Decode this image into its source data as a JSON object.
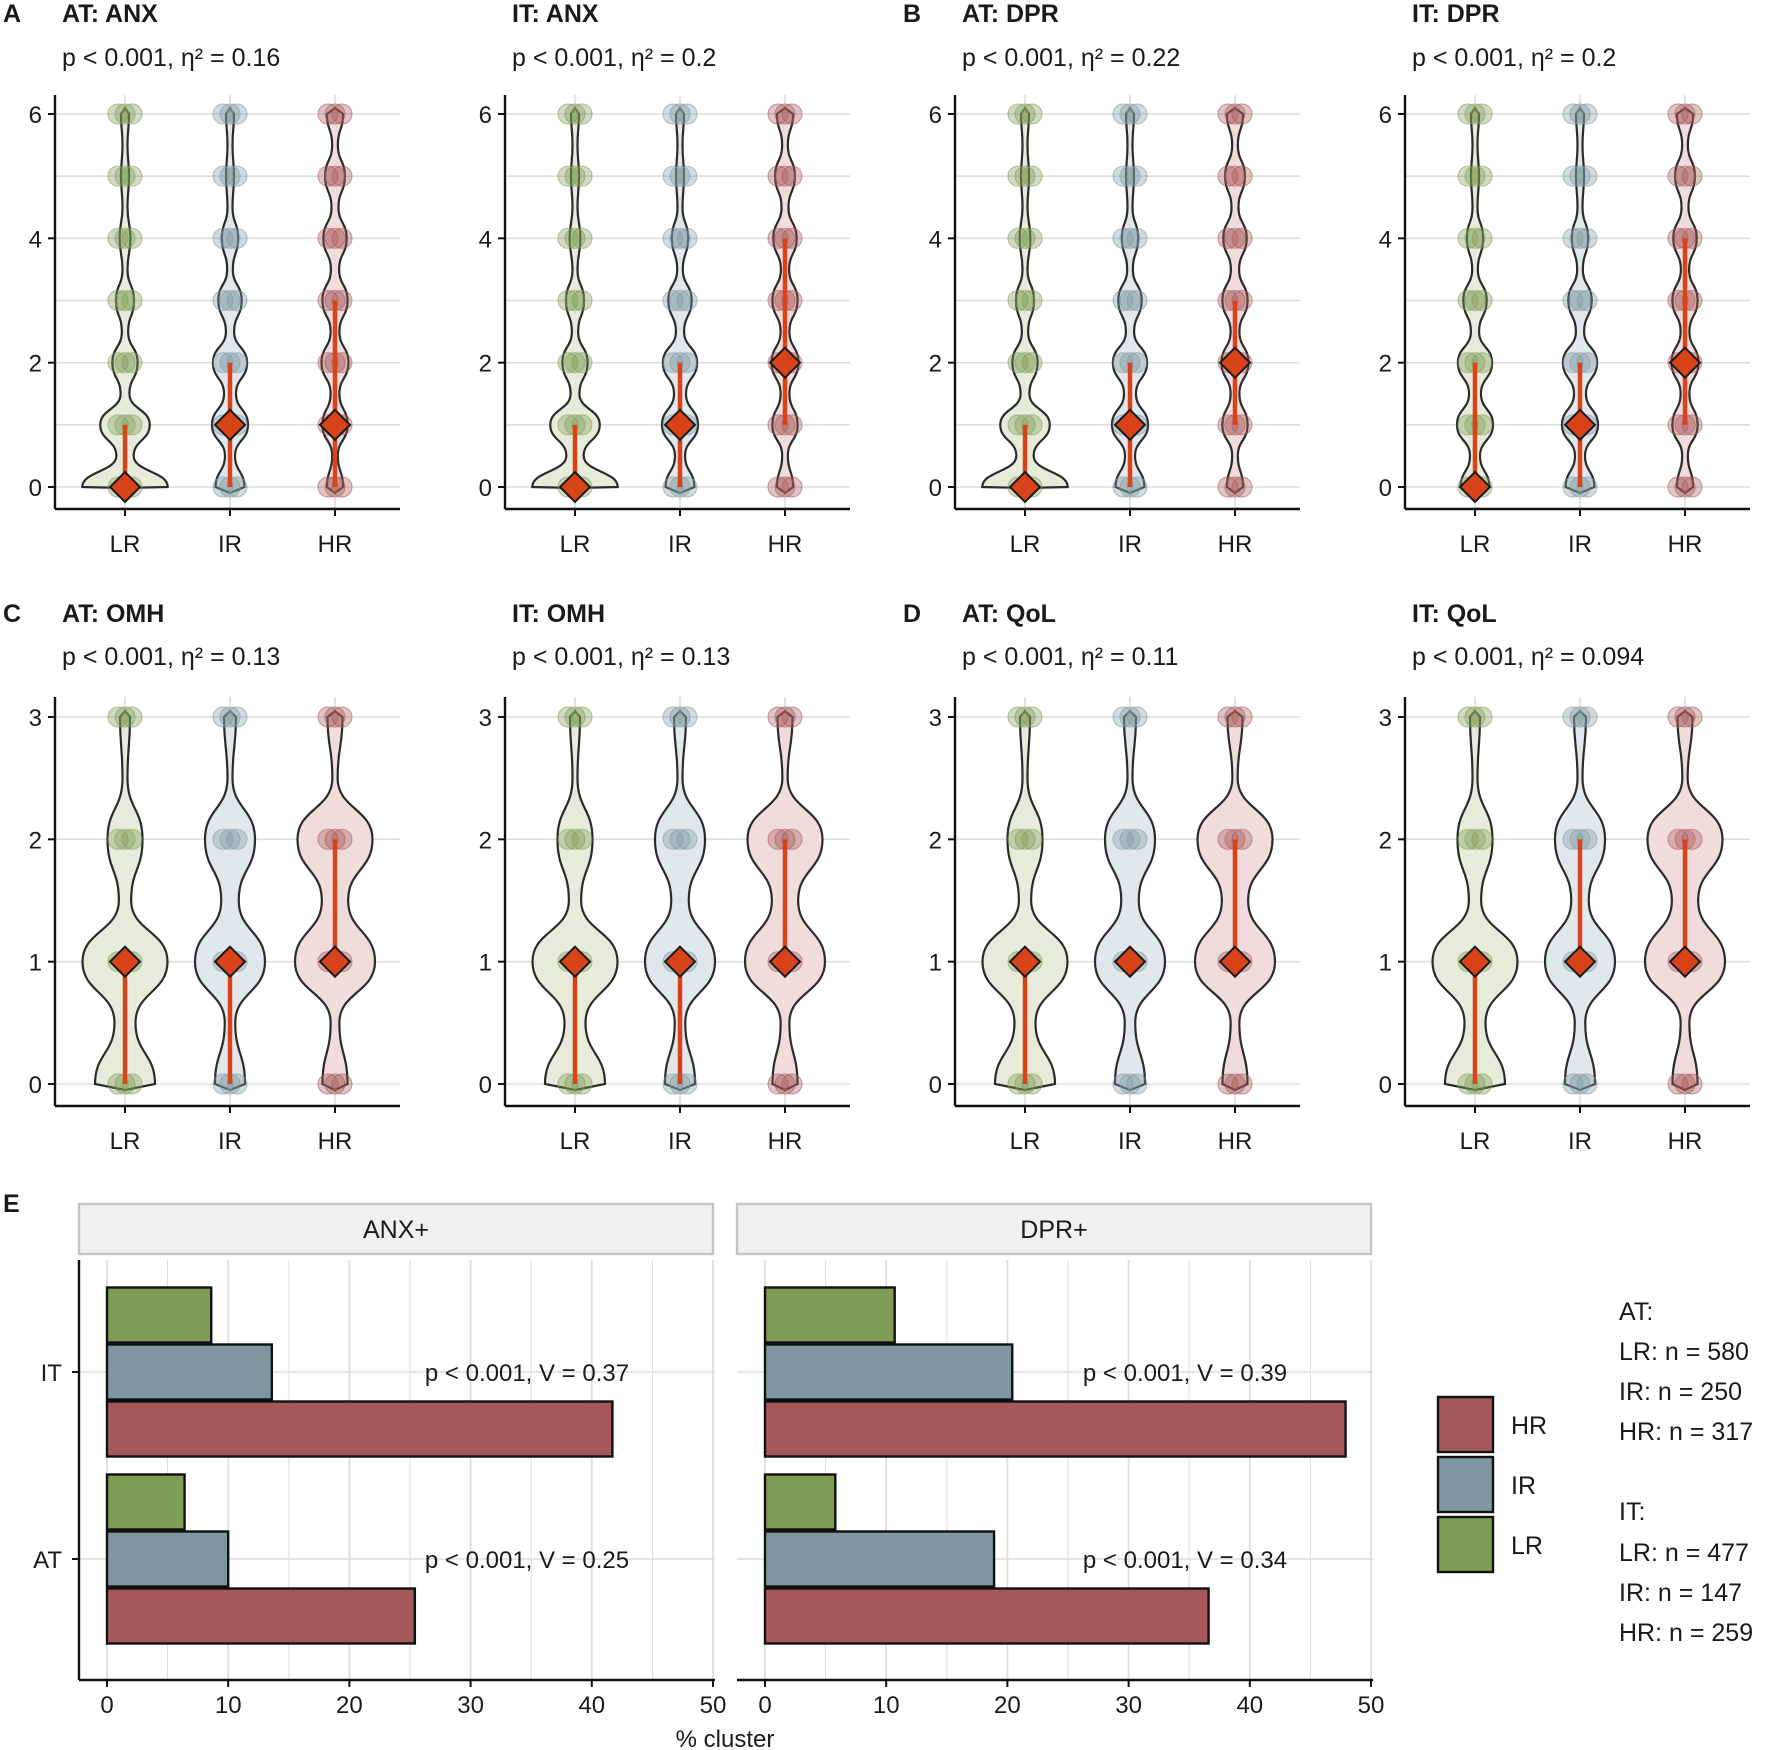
{
  "colors": {
    "LR": "#7f9c55",
    "IR": "#7e97a0",
    "HR": "#a5585a",
    "LR_violin": "#e6ecd9",
    "IR_violin": "#e1e8ec",
    "HR_violin": "#f1dcdc",
    "median_line": "#d8431a",
    "grid": "#dedede",
    "strip_bg": "#f0f0f0",
    "strip_border": "#c4c4c4"
  },
  "panels": [
    {
      "letter": "A",
      "title": "AT: ANX",
      "stat": "p < 0.001, η² = 0.16"
    },
    {
      "letter": "",
      "title": "IT: ANX",
      "stat": "p < 0.001, η² = 0.2"
    },
    {
      "letter": "B",
      "title": "AT: DPR",
      "stat": "p < 0.001, η² = 0.22"
    },
    {
      "letter": "",
      "title": "IT: DPR",
      "stat": "p < 0.001, η² = 0.2"
    },
    {
      "letter": "C",
      "title": "AT: OMH",
      "stat": "p < 0.001, η² = 0.13"
    },
    {
      "letter": "",
      "title": "IT: OMH",
      "stat": "p < 0.001, η² = 0.13"
    },
    {
      "letter": "D",
      "title": "AT: QoL",
      "stat": "p < 0.001, η² = 0.11"
    },
    {
      "letter": "",
      "title": "IT: QoL",
      "stat": "p < 0.001, η² = 0.094"
    }
  ],
  "chart_data": [
    {
      "type": "violin",
      "title": "AT: ANX",
      "subtitle": "p < 0.001, η² = 0.16",
      "categories": [
        "LR",
        "IR",
        "HR"
      ],
      "ylim": [
        0,
        6
      ],
      "yticks": [
        "0",
        "2",
        "4",
        "6"
      ],
      "median": [
        0,
        1,
        1
      ],
      "q1": [
        0,
        0,
        0
      ],
      "q3": [
        1,
        2,
        3
      ],
      "observed_levels": [
        [
          0,
          1,
          2,
          3,
          4,
          5,
          6
        ],
        [
          0,
          1,
          2,
          3,
          4,
          5,
          6
        ],
        [
          0,
          1,
          2,
          3,
          4,
          5,
          6
        ]
      ]
    },
    {
      "type": "violin",
      "title": "IT: ANX",
      "subtitle": "p < 0.001, η² = 0.2",
      "categories": [
        "LR",
        "IR",
        "HR"
      ],
      "ylim": [
        0,
        6
      ],
      "yticks": [
        "0",
        "2",
        "4",
        "6"
      ],
      "median": [
        0,
        1,
        2
      ],
      "q1": [
        0,
        0,
        1
      ],
      "q3": [
        1,
        2,
        4
      ],
      "observed_levels": [
        [
          0,
          1,
          2,
          3,
          4,
          5,
          6
        ],
        [
          0,
          1,
          2,
          3,
          4,
          5,
          6
        ],
        [
          0,
          1,
          2,
          3,
          4,
          5,
          6
        ]
      ]
    },
    {
      "type": "violin",
      "title": "AT: DPR",
      "subtitle": "p < 0.001, η² = 0.22",
      "categories": [
        "LR",
        "IR",
        "HR"
      ],
      "ylim": [
        0,
        6
      ],
      "yticks": [
        "0",
        "2",
        "4",
        "6"
      ],
      "median": [
        0,
        1,
        2
      ],
      "q1": [
        0,
        0,
        1
      ],
      "q3": [
        1,
        2,
        3
      ],
      "observed_levels": [
        [
          0,
          1,
          2,
          3,
          4,
          5,
          6
        ],
        [
          0,
          1,
          2,
          3,
          4,
          5,
          6
        ],
        [
          0,
          1,
          2,
          3,
          4,
          5,
          6
        ]
      ]
    },
    {
      "type": "violin",
      "title": "IT: DPR",
      "subtitle": "p < 0.001, η² = 0.2",
      "categories": [
        "LR",
        "IR",
        "HR"
      ],
      "ylim": [
        0,
        6
      ],
      "yticks": [
        "0",
        "2",
        "4",
        "6"
      ],
      "median": [
        0,
        1,
        2
      ],
      "q1": [
        0,
        0,
        1
      ],
      "q3": [
        2,
        2,
        4
      ],
      "observed_levels": [
        [
          0,
          1,
          2,
          3,
          4,
          5,
          6
        ],
        [
          0,
          1,
          2,
          3,
          4,
          5,
          6
        ],
        [
          0,
          1,
          2,
          3,
          4,
          5,
          6
        ]
      ]
    },
    {
      "type": "violin",
      "title": "AT: OMH",
      "subtitle": "p < 0.001, η² = 0.13",
      "categories": [
        "LR",
        "IR",
        "HR"
      ],
      "ylim": [
        0,
        3
      ],
      "yticks": [
        "0",
        "1",
        "2",
        "3"
      ],
      "median": [
        1,
        1,
        1
      ],
      "q1": [
        0,
        0,
        1
      ],
      "q3": [
        1,
        1,
        2
      ],
      "observed_levels": [
        [
          0,
          1,
          2,
          3
        ],
        [
          0,
          1,
          2,
          3
        ],
        [
          0,
          1,
          2,
          3
        ]
      ]
    },
    {
      "type": "violin",
      "title": "IT: OMH",
      "subtitle": "p < 0.001, η² = 0.13",
      "categories": [
        "LR",
        "IR",
        "HR"
      ],
      "ylim": [
        0,
        3
      ],
      "yticks": [
        "0",
        "1",
        "2",
        "3"
      ],
      "median": [
        1,
        1,
        1
      ],
      "q1": [
        0,
        0,
        1
      ],
      "q3": [
        1,
        1,
        2
      ],
      "observed_levels": [
        [
          0,
          1,
          2,
          3
        ],
        [
          0,
          1,
          2,
          3
        ],
        [
          0,
          1,
          2,
          3
        ]
      ]
    },
    {
      "type": "violin",
      "title": "AT: QoL",
      "subtitle": "p < 0.001, η² = 0.11",
      "categories": [
        "LR",
        "IR",
        "HR"
      ],
      "ylim": [
        0,
        3
      ],
      "yticks": [
        "0",
        "1",
        "2",
        "3"
      ],
      "median": [
        1,
        1,
        1
      ],
      "q1": [
        0,
        1,
        1
      ],
      "q3": [
        1,
        1,
        2
      ],
      "observed_levels": [
        [
          0,
          1,
          2,
          3
        ],
        [
          0,
          1,
          2,
          3
        ],
        [
          0,
          1,
          2,
          3
        ]
      ]
    },
    {
      "type": "violin",
      "title": "IT: QoL",
      "subtitle": "p < 0.001, η² = 0.094",
      "categories": [
        "LR",
        "IR",
        "HR"
      ],
      "ylim": [
        0,
        3
      ],
      "yticks": [
        "0",
        "1",
        "2",
        "3"
      ],
      "median": [
        1,
        1,
        1
      ],
      "q1": [
        0,
        1,
        1
      ],
      "q3": [
        1,
        2,
        2
      ],
      "observed_levels": [
        [
          0,
          1,
          2,
          3
        ],
        [
          0,
          1,
          2,
          3
        ],
        [
          0,
          1,
          2,
          3
        ]
      ]
    },
    {
      "type": "bar",
      "orientation": "horizontal",
      "panel_letter": "E",
      "facets": [
        "ANX+",
        "DPR+"
      ],
      "categories": [
        "IT",
        "AT"
      ],
      "xlabel": "% cluster",
      "xlim": [
        0,
        50
      ],
      "xticks": [
        "0",
        "10",
        "20",
        "30",
        "40",
        "50"
      ],
      "series": [
        {
          "name": "LR",
          "values": {
            "ANX+": {
              "IT": 8.6,
              "AT": 6.4
            },
            "DPR+": {
              "IT": 10.7,
              "AT": 5.8
            }
          }
        },
        {
          "name": "IR",
          "values": {
            "ANX+": {
              "IT": 13.6,
              "AT": 10.0
            },
            "DPR+": {
              "IT": 20.4,
              "AT": 18.9
            }
          }
        },
        {
          "name": "HR",
          "values": {
            "ANX+": {
              "IT": 41.7,
              "AT": 25.4
            },
            "DPR+": {
              "IT": 47.9,
              "AT": 36.6
            }
          }
        }
      ],
      "annotations": {
        "ANX+": {
          "IT": "p < 0.001, V = 0.37",
          "AT": "p < 0.001, V = 0.25"
        },
        "DPR+": {
          "IT": "p < 0.001, V = 0.39",
          "AT": "p < 0.001, V = 0.34"
        }
      },
      "legend_order": [
        "HR",
        "IR",
        "LR"
      ]
    }
  ],
  "sample_sizes": {
    "AT": {
      "label": "AT:",
      "lines": [
        "LR: n = 580",
        "IR: n = 250",
        "HR: n = 317"
      ]
    },
    "IT": {
      "label": "IT:",
      "lines": [
        "LR: n = 477",
        "IR: n = 147",
        "HR: n = 259"
      ]
    }
  }
}
